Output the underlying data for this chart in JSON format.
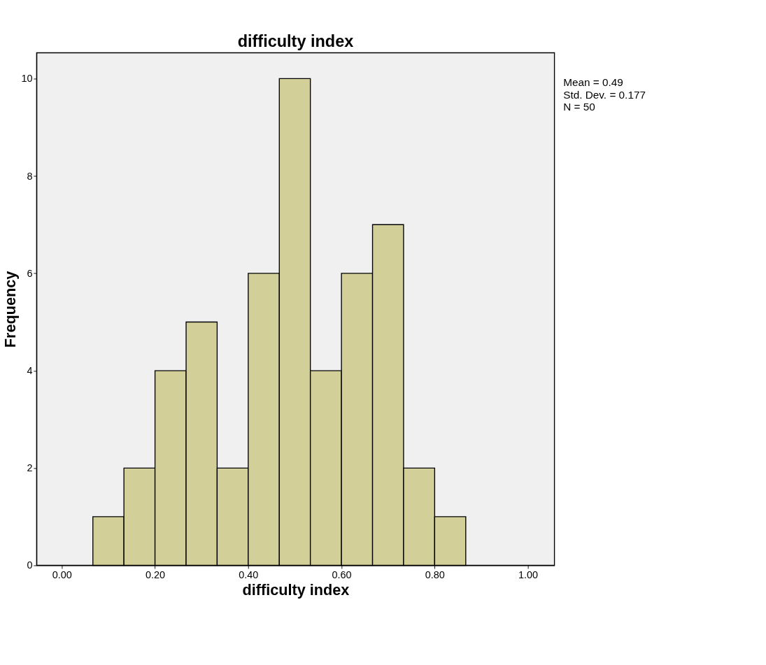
{
  "chart_data": {
    "type": "histogram",
    "title": "difficulty index",
    "xlabel": "difficulty index",
    "ylabel": "Frequency",
    "bins": [
      0.0667,
      0.1333,
      0.2,
      0.2667,
      0.3333,
      0.4,
      0.4667,
      0.5333,
      0.6,
      0.6667,
      0.7333,
      0.8,
      0.8667
    ],
    "values": [
      1,
      2,
      4,
      5,
      2,
      6,
      10,
      4,
      6,
      7,
      2,
      1
    ],
    "color": "#d3cf98",
    "xlim": [
      -0.054,
      1.057
    ],
    "ylim": [
      0,
      10.53
    ],
    "xticks": [
      {
        "value": 0,
        "label": "0.00"
      },
      {
        "value": 0.2,
        "label": "0.20"
      },
      {
        "value": 0.4,
        "label": "0.40"
      },
      {
        "value": 0.6,
        "label": "0.60"
      },
      {
        "value": 0.8,
        "label": "0.80"
      },
      {
        "value": 1,
        "label": "1.00"
      }
    ],
    "yticks": [
      0,
      2,
      4,
      6,
      8,
      10
    ],
    "grid": false,
    "annotations": [
      "Mean = 0.49",
      "Std. Dev. = 0.177",
      "N = 50"
    ]
  }
}
